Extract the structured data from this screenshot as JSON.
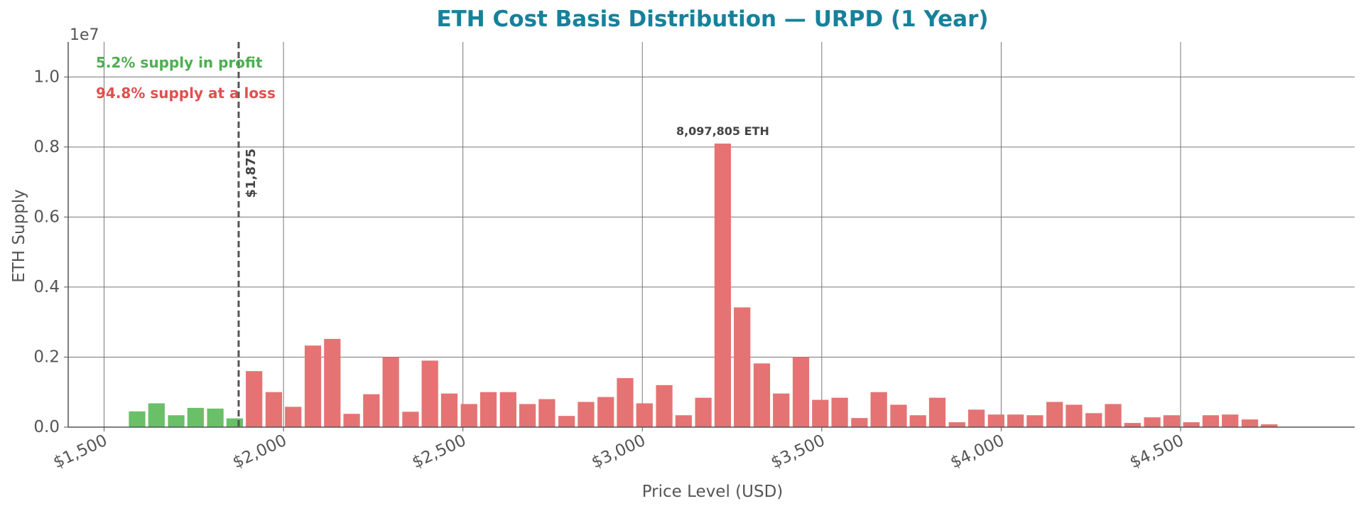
{
  "chart_data": {
    "type": "bar",
    "title": "ETH Cost Basis Distribution — URPD (1 Year)",
    "xlabel": "Price Level (USD)",
    "ylabel": "ETH Supply",
    "y_offset_label": "1e7",
    "x": [
      1592,
      1646,
      1701,
      1755,
      1810,
      1864,
      1918,
      1973,
      2027,
      2082,
      2136,
      2190,
      2245,
      2299,
      2354,
      2408,
      2462,
      2517,
      2571,
      2626,
      2680,
      2734,
      2789,
      2843,
      2898,
      2952,
      3006,
      3061,
      3115,
      3170,
      3224,
      3278,
      3333,
      3387,
      3442,
      3496,
      3550,
      3605,
      3659,
      3714,
      3768,
      3822,
      3877,
      3931,
      3986,
      4040,
      4094,
      4149,
      4203,
      4258,
      4312,
      4366,
      4421,
      4475,
      4530,
      4584,
      4638,
      4693,
      4747
    ],
    "values": [
      450000,
      680000,
      340000,
      550000,
      530000,
      250000,
      1600000,
      1000000,
      580000,
      2330000,
      2520000,
      380000,
      940000,
      2000000,
      440000,
      1900000,
      960000,
      660000,
      1000000,
      1000000,
      660000,
      800000,
      320000,
      720000,
      860000,
      1400000,
      680000,
      1200000,
      340000,
      840000,
      8097805,
      3420000,
      1820000,
      960000,
      2000000,
      780000,
      840000,
      260000,
      1000000,
      640000,
      340000,
      840000,
      140000,
      500000,
      360000,
      360000,
      340000,
      720000,
      640000,
      400000,
      660000,
      120000,
      280000,
      340000,
      140000,
      340000,
      360000,
      220000,
      80000
    ],
    "value_labels": [
      null,
      null,
      null,
      null,
      null,
      null,
      null,
      null,
      null,
      null,
      null,
      null,
      null,
      null,
      null,
      null,
      null,
      null,
      null,
      null,
      null,
      null,
      null,
      null,
      null,
      null,
      null,
      null,
      null,
      null,
      "8,097,805 ETH",
      null,
      null,
      null,
      null,
      null,
      null,
      null,
      null,
      null,
      null,
      null,
      null,
      null,
      null,
      null,
      null,
      null,
      null,
      null,
      null,
      null,
      null,
      null,
      null,
      null,
      null,
      null,
      null
    ],
    "bar_width": 46,
    "current_price": 1875,
    "current_price_label": "$1,875",
    "profit_color": "#6abf69",
    "loss_color": "#e57373",
    "profit_text": "5.2% supply in profit",
    "loss_text": "94.8% supply at a loss",
    "xlim": [
      1400,
      4985
    ],
    "xticks": [
      {
        "value": 1500,
        "label": "$1,500"
      },
      {
        "value": 2000,
        "label": "$2,000"
      },
      {
        "value": 2500,
        "label": "$2,500"
      },
      {
        "value": 3000,
        "label": "$3,000"
      },
      {
        "value": 3500,
        "label": "$3,500"
      },
      {
        "value": 4000,
        "label": "$4,000"
      },
      {
        "value": 4500,
        "label": "$4,500"
      }
    ],
    "ylim": [
      0,
      11000000
    ],
    "yticks": [
      {
        "value": 0,
        "label": "0.0"
      },
      {
        "value": 2000000,
        "label": "0.2"
      },
      {
        "value": 4000000,
        "label": "0.4"
      },
      {
        "value": 6000000,
        "label": "0.6"
      },
      {
        "value": 8000000,
        "label": "0.8"
      },
      {
        "value": 10000000,
        "label": "1.0"
      }
    ],
    "grid": true
  }
}
